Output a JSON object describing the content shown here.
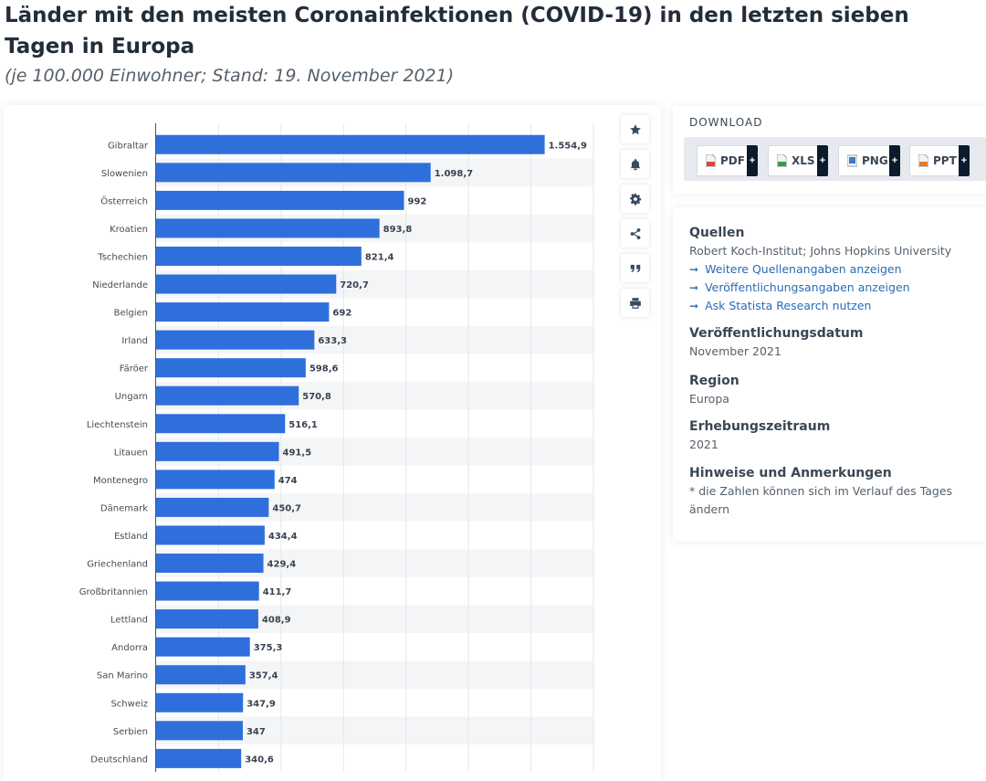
{
  "header": {
    "title": "Länder mit den meisten Coronainfektionen (COVID-19) in den letzten sieben Tagen in Europa",
    "subtitle": "(je 100.000 Einwohner; Stand: 19. November 2021)"
  },
  "chart_data": {
    "type": "bar",
    "orientation": "horizontal",
    "categories": [
      "Gibraltar",
      "Slowenien",
      "Österreich",
      "Kroatien",
      "Tschechien",
      "Niederlande",
      "Belgien",
      "Irland",
      "Färöer",
      "Ungarn",
      "Liechtenstein",
      "Litauen",
      "Montenegro",
      "Dänemark",
      "Estland",
      "Griechenland",
      "Großbritannien",
      "Lettland",
      "Andorra",
      "San Marino",
      "Schweiz",
      "Serbien",
      "Deutschland"
    ],
    "values": [
      1554.9,
      1098.7,
      992,
      893.8,
      821.4,
      720.7,
      692,
      633.3,
      598.6,
      570.8,
      516.1,
      491.5,
      474,
      450.7,
      434.4,
      429.4,
      411.7,
      408.9,
      375.3,
      357.4,
      347.9,
      347,
      340.6
    ],
    "labels": [
      "1.554,9",
      "1.098,7",
      "992",
      "893,8",
      "821,4",
      "720,7",
      "692",
      "633,3",
      "598,6",
      "570,8",
      "516,1",
      "491,5",
      "474",
      "450,7",
      "434,4",
      "429,4",
      "411,7",
      "408,9",
      "375,3",
      "357,4",
      "347,9",
      "347",
      "340,6"
    ],
    "xlim": [
      0,
      1750
    ],
    "grid": true,
    "bar_color": "#2f6fdc"
  },
  "toolbar": {
    "items": [
      {
        "name": "favorite-button",
        "icon": "star-icon"
      },
      {
        "name": "notification-button",
        "icon": "bell-icon"
      },
      {
        "name": "settings-button",
        "icon": "gear-icon"
      },
      {
        "name": "share-button",
        "icon": "share-icon"
      },
      {
        "name": "cite-button",
        "icon": "quote-icon"
      },
      {
        "name": "print-button",
        "icon": "printer-icon"
      }
    ]
  },
  "download": {
    "label": "DOWNLOAD",
    "buttons": [
      {
        "label": "PDF",
        "color": "#d94a3b"
      },
      {
        "label": "XLS",
        "color": "#3d9b3d"
      },
      {
        "label": "PNG",
        "color": "#3a7bc8"
      },
      {
        "label": "PPT",
        "color": "#e27a2f"
      }
    ],
    "plus": "+"
  },
  "info": {
    "sources_heading": "Quellen",
    "sources_text": "Robert Koch-Institut; Johns Hopkins University",
    "links": [
      "Weitere Quellenangaben anzeigen",
      "Veröffentlichungsangaben anzeigen",
      "Ask Statista Research nutzen"
    ],
    "pub_heading": "Veröffentlichungsdatum",
    "pub_value": "November 2021",
    "region_heading": "Region",
    "region_value": "Europa",
    "period_heading": "Erhebungszeitraum",
    "period_value": "2021",
    "notes_heading": "Hinweise und Anmerkungen",
    "notes_text": "* die Zahlen können sich im Verlauf des Tages ändern"
  }
}
